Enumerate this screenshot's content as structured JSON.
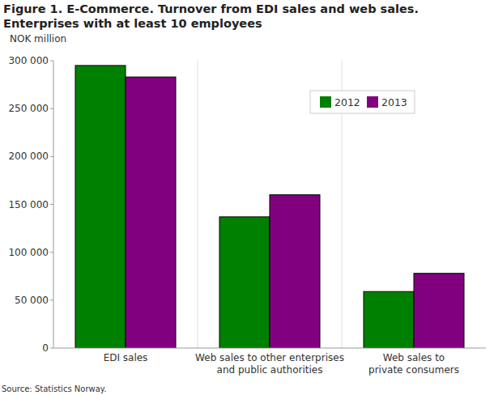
{
  "chart_data": {
    "type": "bar",
    "title": "Figure 1. E-Commerce. Turnover from EDI sales and web sales. Enterprises with at least 10 employees",
    "ylabel": "NOK million",
    "source": "Source: Statistics Norway.",
    "categories": [
      "EDI sales",
      "Web sales to other enterprises\nand public authorities",
      "Web sales to\nprivate consumers"
    ],
    "series": [
      {
        "name": "2012",
        "color": "#008000",
        "values": [
          295000,
          137000,
          59000
        ]
      },
      {
        "name": "2013",
        "color": "#800080",
        "values": [
          283000,
          160000,
          78000
        ]
      }
    ],
    "ylim": [
      0,
      300000
    ],
    "yticks": [
      0,
      {
        "value": 50000,
        "label": "50 000"
      },
      {
        "value": 100000,
        "label": "100 000"
      },
      {
        "value": 150000,
        "label": "150 000"
      },
      {
        "value": 200000,
        "label": "200 000"
      },
      {
        "value": 250000,
        "label": "250 000"
      },
      {
        "value": 300000,
        "label": "300 000"
      }
    ],
    "grid": false,
    "legend": "upper right"
  }
}
